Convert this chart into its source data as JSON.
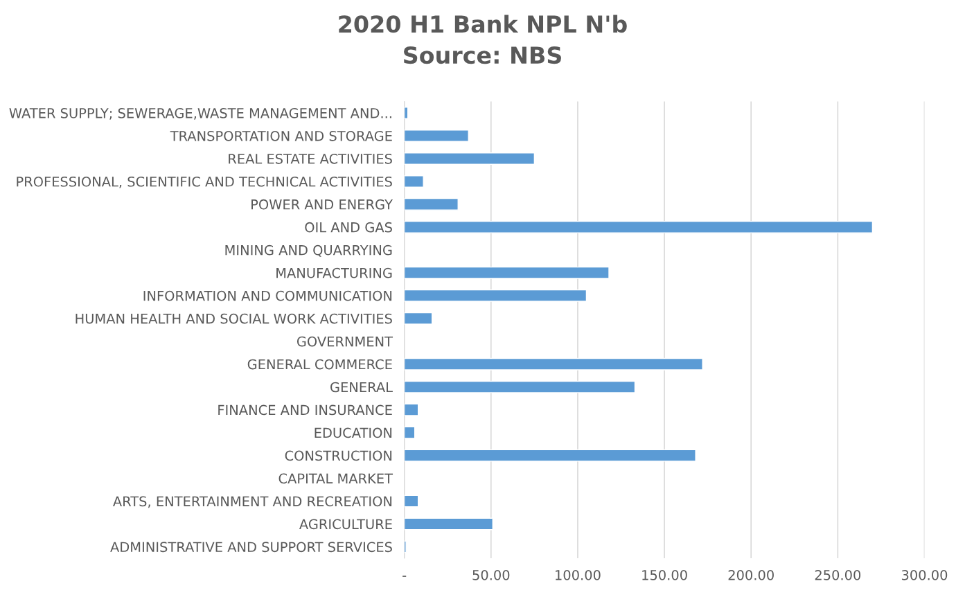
{
  "chart_data": {
    "type": "bar",
    "orientation": "horizontal",
    "title": "2020 H1 Bank NPL N'b\nSource: NBS",
    "categories": [
      "WATER SUPPLY; SEWERAGE,WASTE MANAGEMENT AND...",
      "TRANSPORTATION AND STORAGE",
      "REAL ESTATE ACTIVITIES",
      "PROFESSIONAL, SCIENTIFIC AND TECHNICAL ACTIVITIES",
      "POWER AND ENERGY",
      "OIL AND GAS",
      "MINING AND QUARRYING",
      "MANUFACTURING",
      "INFORMATION AND COMMUNICATION",
      "HUMAN HEALTH AND SOCIAL WORK ACTIVITIES",
      "GOVERNMENT",
      "GENERAL COMMERCE",
      "GENERAL",
      "FINANCE AND INSURANCE",
      "EDUCATION",
      "CONSTRUCTION",
      "CAPITAL MARKET",
      "ARTS, ENTERTAINMENT AND RECREATION",
      "AGRICULTURE",
      "ADMINISTRATIVE AND SUPPORT SERVICES"
    ],
    "values": [
      2,
      37,
      75,
      11,
      31,
      270,
      null,
      118,
      105,
      16,
      null,
      172,
      133,
      8,
      6,
      168,
      null,
      8,
      51,
      1
    ],
    "color": "#5b9bd5",
    "xlim": [
      0,
      300
    ],
    "xticks": [
      {
        "value": 0,
        "label": "-"
      },
      {
        "value": 50,
        "label": "50.00"
      },
      {
        "value": 100,
        "label": "100.00"
      },
      {
        "value": 150,
        "label": "150.00"
      },
      {
        "value": 200,
        "label": "200.00"
      },
      {
        "value": 250,
        "label": "250.00"
      },
      {
        "value": 300,
        "label": "300.00"
      }
    ],
    "grid": "x"
  }
}
